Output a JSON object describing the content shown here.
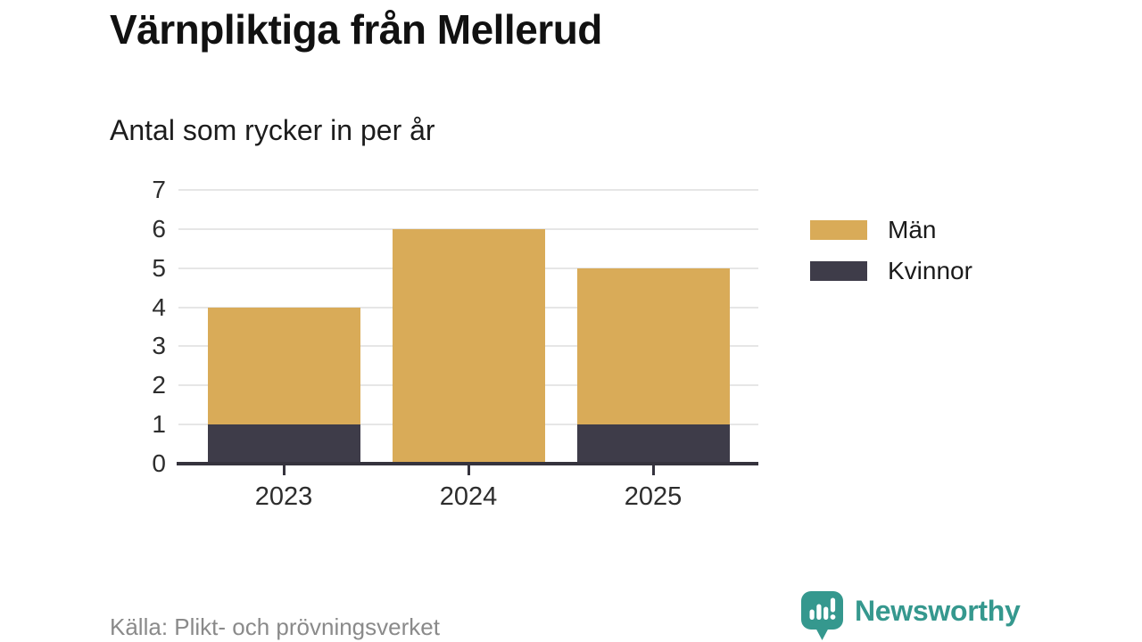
{
  "header": {
    "title": "Värnpliktiga från Mellerud",
    "subtitle": "Antal som rycker in per år"
  },
  "chart_data": {
    "type": "bar",
    "stacked": true,
    "categories": [
      "2023",
      "2024",
      "2025"
    ],
    "series": [
      {
        "name": "Män",
        "color": "#d9ab58",
        "values": [
          3,
          6,
          4
        ]
      },
      {
        "name": "Kvinnor",
        "color": "#3e3c49",
        "values": [
          1,
          0,
          1
        ]
      }
    ],
    "totals": [
      4,
      6,
      5
    ],
    "title": "Värnpliktiga från Mellerud",
    "subtitle": "Antal som rycker in per år",
    "xlabel": "",
    "ylabel": "",
    "ylim": [
      0,
      7
    ],
    "yticks": [
      0,
      1,
      2,
      3,
      4,
      5,
      6,
      7
    ],
    "grid": true,
    "legend_position": "right"
  },
  "footer": {
    "source": "Källa: Plikt- och prövningsverket",
    "brand": {
      "name": "Newsworthy",
      "color": "#35988e",
      "icon": "speech-bubble-bar-chart-icon"
    }
  },
  "colors": {
    "background": "#ffffff",
    "grid": "#e6e6e6",
    "axis": "#35333d",
    "tick_label": "#2d2d2d",
    "source_text": "#8a8a8a"
  }
}
